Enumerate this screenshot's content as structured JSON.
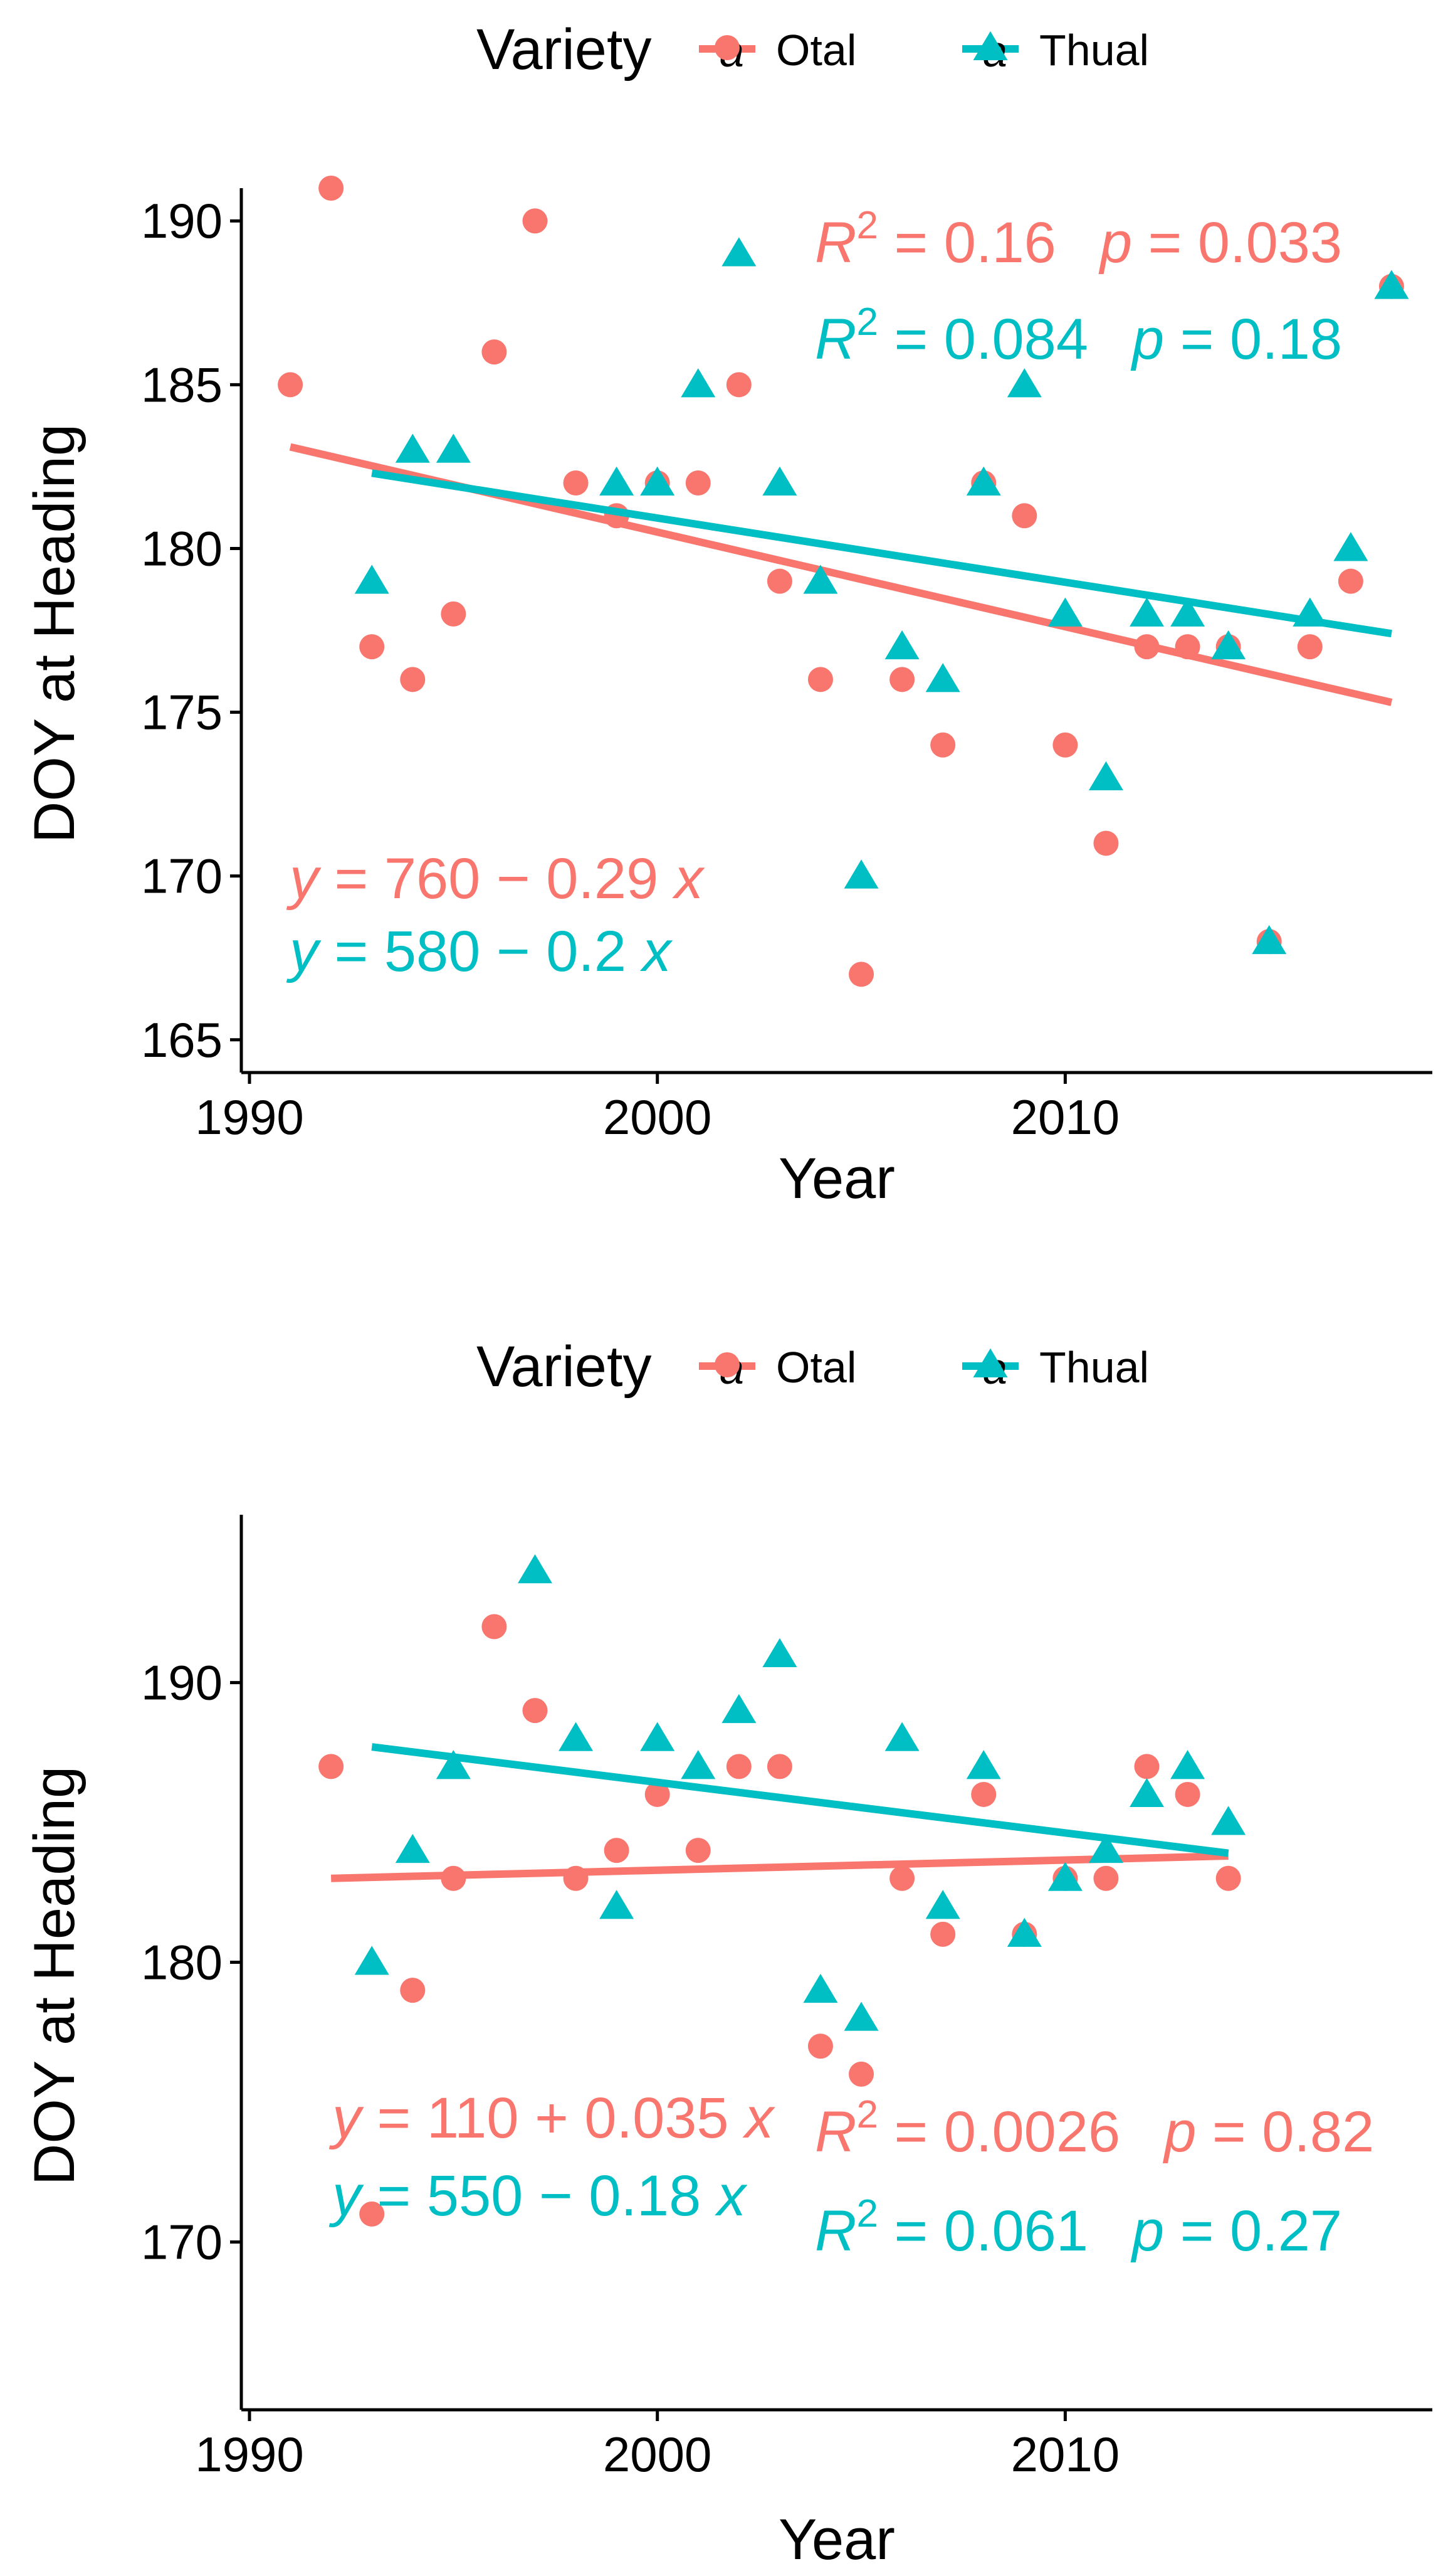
{
  "colors": {
    "Otal": "#F8766D",
    "Thual": "#00BFC4"
  },
  "legend": {
    "title": "Variety",
    "items": [
      {
        "name": "Otal",
        "shape": "circle",
        "key_letter": "a"
      },
      {
        "name": "Thual",
        "shape": "triangle",
        "key_letter": "a"
      }
    ]
  },
  "chart_data": [
    {
      "type": "scatter",
      "xlabel": "Year",
      "ylabel": "DOY at Heading",
      "xlim": [
        1989.8,
        2019
      ],
      "ylim": [
        164,
        191
      ],
      "xticks": [
        1990,
        2000,
        2010
      ],
      "yticks": [
        165,
        170,
        175,
        180,
        185,
        190
      ],
      "series": [
        {
          "name": "Otal",
          "shape": "circle",
          "x": [
            1991,
            1992,
            1993,
            1994,
            1995,
            1996,
            1997,
            1998,
            1999,
            2000,
            2001,
            2002,
            2003,
            2004,
            2005,
            2006,
            2007,
            2008,
            2009,
            2010,
            2011,
            2012,
            2013,
            2014,
            2015,
            2016,
            2017,
            2018
          ],
          "y": [
            185,
            191,
            177,
            176,
            178,
            186,
            190,
            182,
            181,
            182,
            182,
            185,
            179,
            176,
            167,
            176,
            174,
            182,
            181,
            174,
            171,
            177,
            177,
            177,
            168,
            177,
            179,
            188
          ],
          "fit": {
            "x": [
              1991,
              2018
            ],
            "y": [
              183.1,
              175.3
            ]
          }
        },
        {
          "name": "Thual",
          "shape": "triangle",
          "x": [
            1993,
            1994,
            1995,
            1999,
            2000,
            2001,
            2002,
            2003,
            2004,
            2005,
            2006,
            2007,
            2008,
            2009,
            2010,
            2011,
            2012,
            2013,
            2014,
            2015,
            2016,
            2017,
            2018
          ],
          "y": [
            179,
            183,
            183,
            182,
            182,
            185,
            189,
            182,
            179,
            170,
            177,
            176,
            182,
            185,
            178,
            173,
            178,
            178,
            177,
            168,
            178,
            180,
            188
          ],
          "fit": {
            "x": [
              1993,
              2018
            ],
            "y": [
              182.3,
              177.4
            ]
          }
        }
      ],
      "annotations": {
        "equations": [
          {
            "series": "Otal",
            "parts": [
              "y",
              " = 760 − 0.29 ",
              "x"
            ]
          },
          {
            "series": "Thual",
            "parts": [
              "y",
              " = 580 − 0.2 ",
              "x"
            ]
          }
        ],
        "stats": [
          {
            "series": "Otal",
            "r_label": "R",
            "sup": "2",
            "r2_text": " = 0.16",
            "p_label": "p",
            "p_text": " = 0.033"
          },
          {
            "series": "Thual",
            "r_label": "R",
            "sup": "2",
            "r2_text": " = 0.084",
            "p_label": "p",
            "p_text": " = 0.18"
          }
        ]
      }
    },
    {
      "type": "scatter",
      "xlabel": "Year",
      "ylabel": "DOY at Heading",
      "xlim": [
        1989.8,
        2019
      ],
      "ylim": [
        164,
        196
      ],
      "xticks": [
        1990,
        2000,
        2010
      ],
      "yticks": [
        170,
        180,
        190
      ],
      "series": [
        {
          "name": "Otal",
          "shape": "circle",
          "x": [
            1992,
            1993,
            1994,
            1995,
            1996,
            1997,
            1998,
            1999,
            2000,
            2001,
            2002,
            2003,
            2004,
            2005,
            2006,
            2007,
            2008,
            2009,
            2010,
            2011,
            2012,
            2013,
            2014
          ],
          "y": [
            187,
            171,
            179,
            183,
            192,
            189,
            183,
            184,
            186,
            184,
            187,
            187,
            177,
            176,
            183,
            181,
            186,
            181,
            183,
            183,
            187,
            186,
            183
          ],
          "fit": {
            "x": [
              1992,
              2014
            ],
            "y": [
              183.0,
              183.8
            ]
          }
        },
        {
          "name": "Thual",
          "shape": "triangle",
          "x": [
            1993,
            1994,
            1995,
            1997,
            1998,
            1999,
            2000,
            2001,
            2002,
            2003,
            2004,
            2005,
            2006,
            2007,
            2008,
            2009,
            2010,
            2011,
            2012,
            2013,
            2014
          ],
          "y": [
            180,
            184,
            187,
            194,
            188,
            182,
            188,
            187,
            189,
            191,
            179,
            178,
            188,
            182,
            187,
            181,
            183,
            184,
            186,
            187,
            185
          ],
          "fit": {
            "x": [
              1993,
              2014
            ],
            "y": [
              187.7,
              183.9
            ]
          }
        }
      ],
      "annotations": {
        "equations": [
          {
            "series": "Otal",
            "parts": [
              "y",
              " = 110 + 0.035 ",
              "x"
            ]
          },
          {
            "series": "Thual",
            "parts": [
              "y",
              " = 550 − 0.18 ",
              "x"
            ]
          }
        ],
        "stats": [
          {
            "series": "Otal",
            "r_label": "R",
            "sup": "2",
            "r2_text": " = 0.0026",
            "p_label": "p",
            "p_text": " = 0.82"
          },
          {
            "series": "Thual",
            "r_label": "R",
            "sup": "2",
            "r2_text": " = 0.061",
            "p_label": "p",
            "p_text": " = 0.27"
          }
        ]
      }
    }
  ]
}
